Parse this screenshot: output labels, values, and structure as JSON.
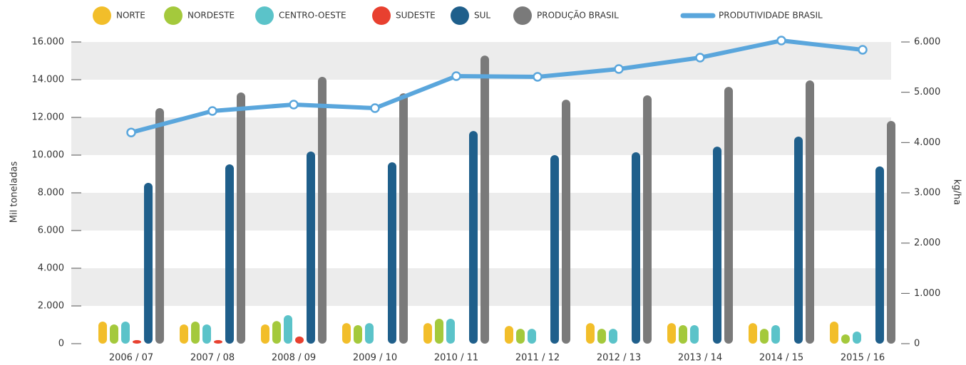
{
  "chart_data": {
    "type": "bar",
    "categories": [
      "2006 / 07",
      "2007 / 08",
      "2008 / 09",
      "2009 / 10",
      "2010 / 11",
      "2011 / 12",
      "2012 / 13",
      "2013 / 14",
      "2014 / 15",
      "2015 / 16"
    ],
    "series": [
      {
        "name": "NORTE",
        "color": "#f2be2a",
        "values": [
          1170,
          1020,
          1020,
          1090,
          1090,
          940,
          1090,
          1090,
          1090,
          1170
        ]
      },
      {
        "name": "NORDESTE",
        "color": "#a4c93c",
        "values": [
          1020,
          1170,
          1200,
          980,
          1320,
          790,
          790,
          980,
          790,
          490
        ]
      },
      {
        "name": "CENTRO-OESTE",
        "color": "#5bc3c9",
        "values": [
          1170,
          1020,
          1510,
          1090,
          1320,
          790,
          790,
          980,
          980,
          640
        ]
      },
      {
        "name": "SUDESTE",
        "color": "#e8402f",
        "values": [
          190,
          190,
          380,
          null,
          null,
          null,
          null,
          null,
          null,
          null
        ]
      },
      {
        "name": "SUL",
        "color": "#1f5f8b",
        "values": [
          8530,
          9510,
          10190,
          9620,
          11280,
          10000,
          10150,
          10450,
          10980,
          9400
        ]
      },
      {
        "name": "PRODUÇÃO BRASIL",
        "color": "#7a7a7a",
        "values": [
          12490,
          13320,
          14150,
          13280,
          15280,
          12940,
          13170,
          13620,
          13960,
          11810
        ]
      },
      {
        "name": "PRODUTIVIDADE BRASIL",
        "color": "#5aa6dc",
        "type": "line",
        "axis": "y2",
        "values": [
          4200,
          4627,
          4755,
          4684,
          5321,
          5307,
          5462,
          5689,
          6028,
          5844
        ]
      }
    ],
    "ylabel": "Mil toneladas",
    "y2label": "kg/ha",
    "ylim": [
      0,
      16000
    ],
    "yticks": [
      0,
      {
        "value": 2000,
        "label": "2.000"
      },
      {
        "value": 4000,
        "label": "4.000"
      },
      {
        "value": 6000,
        "label": "6.000"
      },
      {
        "value": 8000,
        "label": "8.000"
      },
      {
        "value": 10000,
        "label": "10.000"
      },
      {
        "value": 12000,
        "label": "12.000"
      },
      {
        "value": 14000,
        "label": "14.000"
      },
      {
        "value": 16000,
        "label": "16.000"
      }
    ],
    "y2lim": [
      0,
      6000
    ],
    "y2ticks": [
      0,
      {
        "value": 1000,
        "label": "1.000"
      },
      {
        "value": 2000,
        "label": "2.000"
      },
      {
        "value": 3000,
        "label": "3.000"
      },
      {
        "value": 4000,
        "label": "4.000"
      },
      {
        "value": 5000,
        "label": "5.000"
      },
      {
        "value": 6000,
        "label": "6.000"
      }
    ],
    "grid": "bands",
    "legend": "top"
  }
}
